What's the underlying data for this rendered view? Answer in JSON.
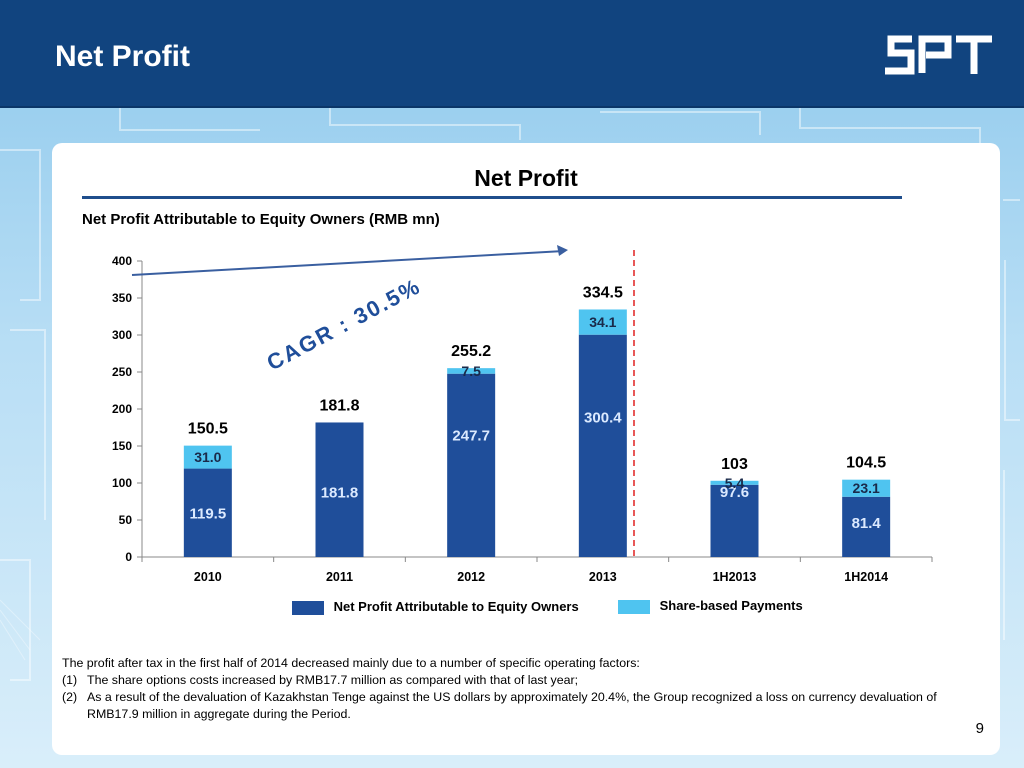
{
  "header": {
    "title": "Net Profit",
    "logo_text": "SPT"
  },
  "panel_title": "Net Profit",
  "colors": {
    "header_bg": "#11447f",
    "bar_primary": "#1f4e9a",
    "bar_secondary": "#4fc4f0",
    "divider": "#e02020"
  },
  "chart_data": {
    "type": "bar",
    "stacked": true,
    "title": "Net Profit Attributable to Equity Owners (RMB mn)",
    "categories": [
      "2010",
      "2011",
      "2012",
      "2013",
      "1H2013",
      "1H2014"
    ],
    "series": [
      {
        "name": "Net Profit Attributable to Equity Owners",
        "values": [
          119.5,
          181.8,
          247.7,
          300.4,
          97.6,
          81.4
        ],
        "labels": [
          "119.5",
          "181.8",
          "247.7",
          "300.4",
          "97.6",
          "81.4"
        ]
      },
      {
        "name": "Share-based Payments",
        "values": [
          31.0,
          0,
          7.5,
          34.1,
          5.4,
          23.1
        ],
        "labels": [
          "31.0",
          "",
          "7.5",
          "34.1",
          "5.4",
          "23.1"
        ]
      }
    ],
    "totals": [
      "150.5",
      "181.8",
      "255.2",
      "334.5",
      "103",
      "104.5"
    ],
    "yticks": [
      "0",
      "50",
      "100",
      "150",
      "200",
      "250",
      "300",
      "350",
      "400"
    ],
    "ylim": [
      0,
      400
    ],
    "annotation": "CAGR : 30.5%",
    "legend_position": "bottom"
  },
  "notes": {
    "intro": "The profit after tax in the first half of 2014 decreased mainly due to a number of specific operating factors:",
    "items": [
      {
        "num": "(1)",
        "text": "The share options costs increased by RMB17.7 million as compared with that of last year;"
      },
      {
        "num": "(2)",
        "text": "As a result of the devaluation of Kazakhstan Tenge against the US dollars by approximately 20.4%, the Group recognized a loss on currency devaluation of RMB17.9 million in aggregate during the Period."
      }
    ]
  },
  "page_number": "9"
}
